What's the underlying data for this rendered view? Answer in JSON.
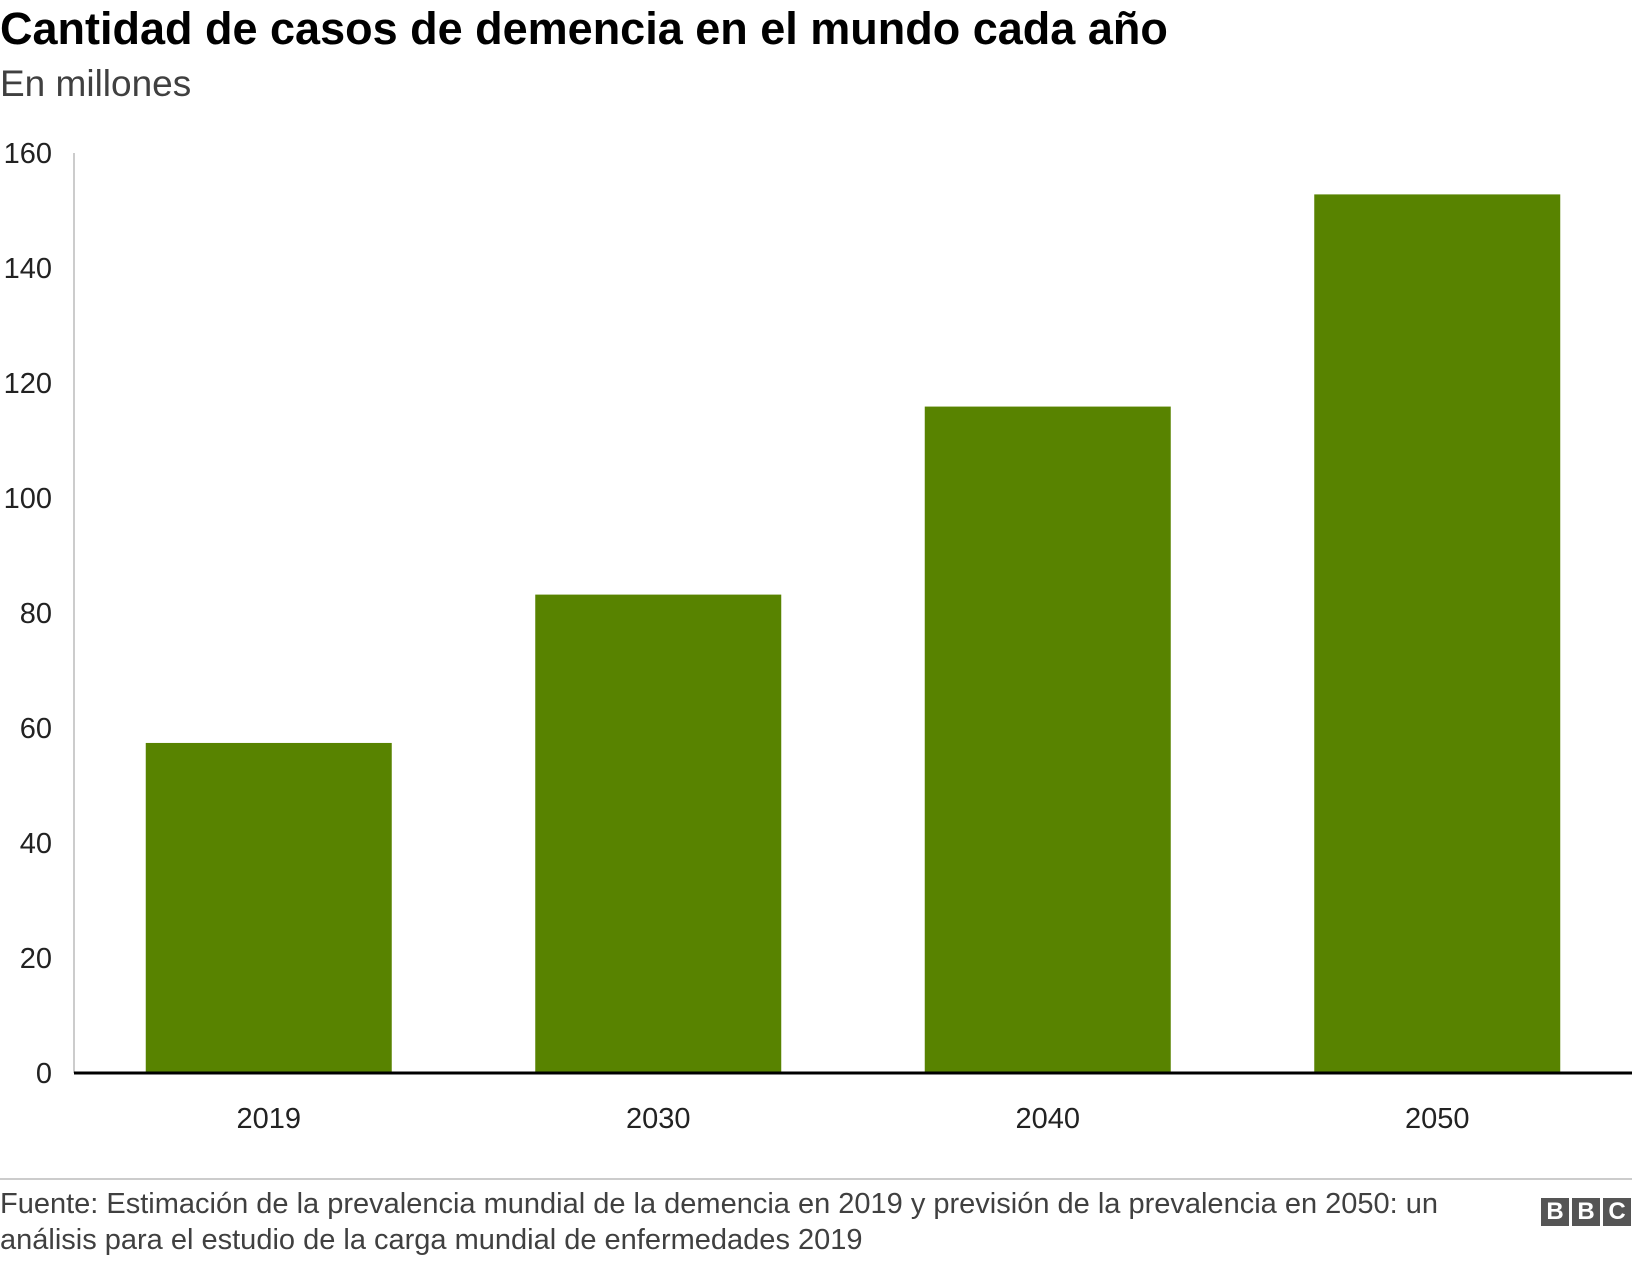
{
  "header": {
    "title": "Cantidad de casos de demencia en el mundo cada año",
    "subtitle": "En millones"
  },
  "footer": {
    "source": "Fuente: Estimación de la prevalencia mundial de la demencia en 2019 y previsión de la prevalencia en 2050: un análisis para el estudio de la carga mundial de enfermedades 2019",
    "logo_letters": [
      "B",
      "B",
      "C"
    ]
  },
  "colors": {
    "bar": "#588300",
    "axis": "#000000",
    "text": "#222222"
  },
  "chart_data": {
    "type": "bar",
    "title": "Cantidad de casos de demencia en el mundo cada año",
    "subtitle": "En millones",
    "xlabel": "",
    "ylabel": "",
    "categories": [
      "2019",
      "2030",
      "2040",
      "2050"
    ],
    "values": [
      57.4,
      83.2,
      115.9,
      152.8
    ],
    "ylim": [
      0,
      160
    ],
    "yticks": [
      0,
      20,
      40,
      60,
      80,
      100,
      120,
      140,
      160
    ],
    "grid": false,
    "legend": "none"
  }
}
